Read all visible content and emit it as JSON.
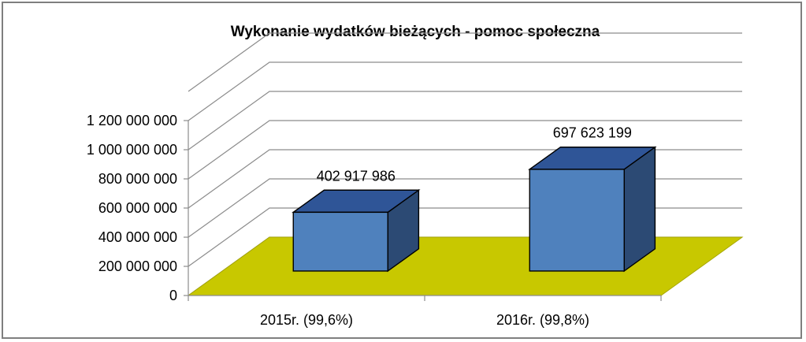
{
  "chart_data": {
    "type": "bar",
    "title": "Wykonanie wydatków bieżących - pomoc społeczna",
    "categories": [
      "2015r. (99,6%)",
      "2016r. (99,8%)"
    ],
    "values": [
      402917986,
      697623199
    ],
    "value_labels": [
      "402 917 986",
      "697 623 199"
    ],
    "yticks": [
      0,
      200000000,
      400000000,
      600000000,
      800000000,
      1000000000,
      1200000000
    ],
    "ytick_labels": [
      "0",
      "200 000 000",
      "400 000 000",
      "600 000 000",
      "800 000 000",
      "1 000 000 000",
      "1 200 000 000"
    ],
    "ylim": [
      0,
      1200000000
    ],
    "grid": true,
    "legend": "none",
    "style": "3d",
    "colors": {
      "bar_front": "#4f81bd",
      "bar_top": "#2f5597",
      "bar_side": "#2c4a74",
      "floor": "#c8c800",
      "grid": "#8c8c8c"
    }
  }
}
